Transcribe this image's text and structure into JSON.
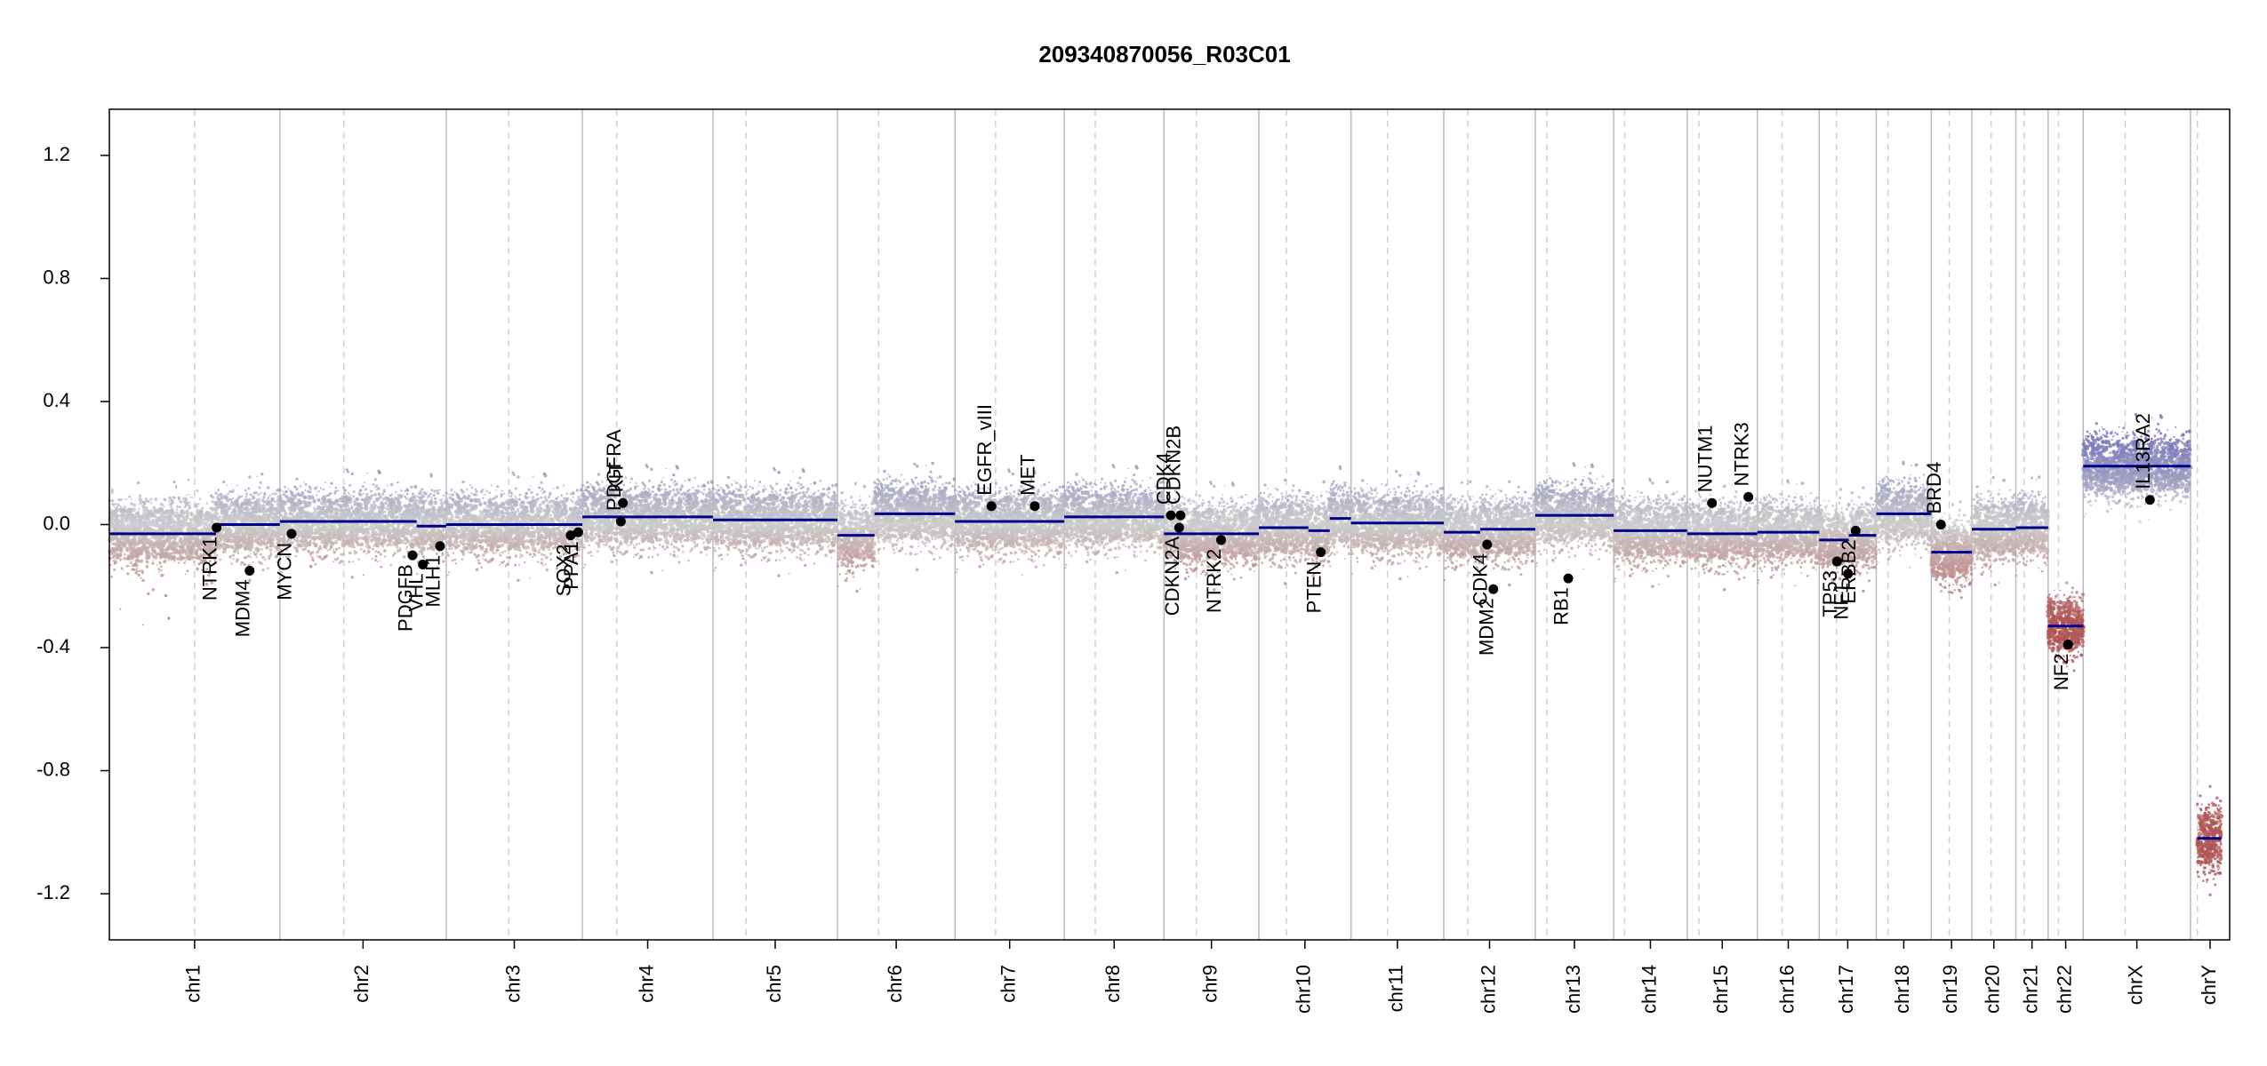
{
  "title": "209340870056_R03C01",
  "chart_data": {
    "type": "scatter",
    "title": "209340870056_R03C01",
    "xlabel": "",
    "ylabel": "",
    "ylim": [
      -1.35,
      1.35
    ],
    "y_ticks": [
      -1.2,
      -0.8,
      -0.4,
      0.0,
      0.4,
      0.8,
      1.2
    ],
    "y_tick_labels": [
      "-1.2",
      "-0.8",
      "-0.4",
      "0.0",
      "0.4",
      "0.8",
      "1.2"
    ],
    "grid": false,
    "legend": "none",
    "colors": {
      "gain": "#6f6fb8",
      "loss": "#b05555",
      "neutral": "#cccccc",
      "segment": "#00008b",
      "chrom_line": "#bbbbbb",
      "arm_line": "#d0d0d0",
      "gene_point": "#000000"
    },
    "chromosomes": [
      {
        "name": "chr1",
        "start": 0,
        "end": 248,
        "centromere": 124
      },
      {
        "name": "chr2",
        "start": 248,
        "end": 490,
        "centromere": 341
      },
      {
        "name": "chr3",
        "start": 490,
        "end": 688,
        "centromere": 581
      },
      {
        "name": "chr4",
        "start": 688,
        "end": 878,
        "centromere": 738
      },
      {
        "name": "chr5",
        "start": 878,
        "end": 1059,
        "centromere": 926
      },
      {
        "name": "chr6",
        "start": 1059,
        "end": 1230,
        "centromere": 1119
      },
      {
        "name": "chr7",
        "start": 1230,
        "end": 1389,
        "centromere": 1289
      },
      {
        "name": "chr8",
        "start": 1389,
        "end": 1534,
        "centromere": 1434
      },
      {
        "name": "chr9",
        "start": 1534,
        "end": 1672,
        "centromere": 1581
      },
      {
        "name": "chr10",
        "start": 1672,
        "end": 1806,
        "centromere": 1712
      },
      {
        "name": "chr11",
        "start": 1806,
        "end": 1941,
        "centromere": 1859
      },
      {
        "name": "chr12",
        "start": 1941,
        "end": 2074,
        "centromere": 1976
      },
      {
        "name": "chr13",
        "start": 2074,
        "end": 2188,
        "centromere": 2091
      },
      {
        "name": "chr14",
        "start": 2188,
        "end": 2295,
        "centromere": 2204
      },
      {
        "name": "chr15",
        "start": 2295,
        "end": 2397,
        "centromere": 2312
      },
      {
        "name": "chr16",
        "start": 2397,
        "end": 2487,
        "centromere": 2433
      },
      {
        "name": "chr17",
        "start": 2487,
        "end": 2570,
        "centromere": 2512
      },
      {
        "name": "chr18",
        "start": 2570,
        "end": 2650,
        "centromere": 2587
      },
      {
        "name": "chr19",
        "start": 2650,
        "end": 2709,
        "centromere": 2676
      },
      {
        "name": "chr20",
        "start": 2709,
        "end": 2773,
        "centromere": 2737
      },
      {
        "name": "chr21",
        "start": 2773,
        "end": 2820,
        "centromere": 2785
      },
      {
        "name": "chr22",
        "start": 2820,
        "end": 2871,
        "centromere": 2835
      },
      {
        "name": "chrX",
        "start": 2871,
        "end": 3027,
        "centromere": 2932
      },
      {
        "name": "chrY",
        "start": 3027,
        "end": 3084,
        "centromere": 3037
      }
    ],
    "segments": [
      {
        "chrom": "chr1",
        "x0": 0,
        "x1": 155,
        "y": -0.03
      },
      {
        "chrom": "chr1",
        "x0": 155,
        "x1": 248,
        "y": 0.0
      },
      {
        "chrom": "chr2",
        "x0": 248,
        "x1": 447,
        "y": 0.01
      },
      {
        "chrom": "chr2",
        "x0": 447,
        "x1": 490,
        "y": -0.005
      },
      {
        "chrom": "chr3",
        "x0": 490,
        "x1": 688,
        "y": 0.0
      },
      {
        "chrom": "chr4",
        "x0": 688,
        "x1": 878,
        "y": 0.025
      },
      {
        "chrom": "chr5",
        "x0": 878,
        "x1": 1059,
        "y": 0.015
      },
      {
        "chrom": "chr6",
        "x0": 1059,
        "x1": 1113,
        "y": -0.035
      },
      {
        "chrom": "chr6",
        "x0": 1113,
        "x1": 1230,
        "y": 0.035
      },
      {
        "chrom": "chr7",
        "x0": 1230,
        "x1": 1389,
        "y": 0.01
      },
      {
        "chrom": "chr8",
        "x0": 1389,
        "x1": 1534,
        "y": 0.025
      },
      {
        "chrom": "chr9",
        "x0": 1534,
        "x1": 1672,
        "y": -0.03
      },
      {
        "chrom": "chr10",
        "x0": 1672,
        "x1": 1744,
        "y": -0.01
      },
      {
        "chrom": "chr10",
        "x0": 1744,
        "x1": 1775,
        "y": -0.02
      },
      {
        "chrom": "chr10",
        "x0": 1775,
        "x1": 1806,
        "y": 0.02
      },
      {
        "chrom": "chr11",
        "x0": 1806,
        "x1": 1941,
        "y": 0.005
      },
      {
        "chrom": "chr12",
        "x0": 1941,
        "x1": 1994,
        "y": -0.025
      },
      {
        "chrom": "chr12",
        "x0": 1994,
        "x1": 2074,
        "y": -0.015
      },
      {
        "chrom": "chr13",
        "x0": 2074,
        "x1": 2188,
        "y": 0.03
      },
      {
        "chrom": "chr14",
        "x0": 2188,
        "x1": 2295,
        "y": -0.02
      },
      {
        "chrom": "chr15",
        "x0": 2295,
        "x1": 2397,
        "y": -0.03
      },
      {
        "chrom": "chr16",
        "x0": 2397,
        "x1": 2487,
        "y": -0.025
      },
      {
        "chrom": "chr17",
        "x0": 2487,
        "x1": 2530,
        "y": -0.05
      },
      {
        "chrom": "chr17",
        "x0": 2530,
        "x1": 2570,
        "y": -0.035
      },
      {
        "chrom": "chr18",
        "x0": 2570,
        "x1": 2650,
        "y": 0.035
      },
      {
        "chrom": "chr19",
        "x0": 2650,
        "x1": 2709,
        "y": -0.09
      },
      {
        "chrom": "chr20",
        "x0": 2709,
        "x1": 2773,
        "y": -0.015
      },
      {
        "chrom": "chr21",
        "x0": 2773,
        "x1": 2820,
        "y": -0.01
      },
      {
        "chrom": "chr22",
        "x0": 2820,
        "x1": 2871,
        "y": -0.33
      },
      {
        "chrom": "chrX",
        "x0": 2871,
        "x1": 3027,
        "y": 0.19
      },
      {
        "chrom": "chrY",
        "x0": 3037,
        "x1": 3072,
        "y": -1.02
      }
    ],
    "genes": [
      {
        "name": "NTRK1",
        "x": 156,
        "y": -0.01
      },
      {
        "name": "MDM4",
        "x": 204,
        "y": -0.15
      },
      {
        "name": "MYCN",
        "x": 265,
        "y": -0.03
      },
      {
        "name": "PDGFB",
        "x": 441,
        "y": -0.1
      },
      {
        "name": "VHL",
        "x": 456,
        "y": -0.13
      },
      {
        "name": "MLH1",
        "x": 481,
        "y": -0.07
      },
      {
        "name": "SOX2",
        "x": 671,
        "y": -0.035
      },
      {
        "name": "PPA1",
        "x": 682,
        "y": -0.025
      },
      {
        "name": "PDGFRA",
        "x": 744,
        "y": 0.01
      },
      {
        "name": "KIT",
        "x": 747,
        "y": 0.07
      },
      {
        "name": "EGFR_vIII",
        "x": 1283,
        "y": 0.06
      },
      {
        "name": "MET",
        "x": 1346,
        "y": 0.06
      },
      {
        "name": "CDK4",
        "x": 1544,
        "y": 0.03
      },
      {
        "name": "CDKN2A",
        "x": 1556,
        "y": -0.01
      },
      {
        "name": "CDKN2B",
        "x": 1558,
        "y": 0.03
      },
      {
        "name": "NTRK2",
        "x": 1617,
        "y": -0.05
      },
      {
        "name": "PTEN",
        "x": 1762,
        "y": -0.09
      },
      {
        "name": "CDK4",
        "x": 2004,
        "y": -0.065
      },
      {
        "name": "MDM2",
        "x": 2013,
        "y": -0.21
      },
      {
        "name": "RB1",
        "x": 2122,
        "y": -0.175
      },
      {
        "name": "NUTM1",
        "x": 2331,
        "y": 0.07
      },
      {
        "name": "NTRK3",
        "x": 2384,
        "y": 0.09
      },
      {
        "name": "TP53",
        "x": 2513,
        "y": -0.12
      },
      {
        "name": "NF1",
        "x": 2529,
        "y": -0.16
      },
      {
        "name": "ERBB2",
        "x": 2540,
        "y": -0.02
      },
      {
        "name": "BRD4",
        "x": 2664,
        "y": 0.0
      },
      {
        "name": "NF2",
        "x": 2849,
        "y": -0.39
      },
      {
        "name": "IL13RA2",
        "x": 2968,
        "y": 0.08
      }
    ]
  }
}
